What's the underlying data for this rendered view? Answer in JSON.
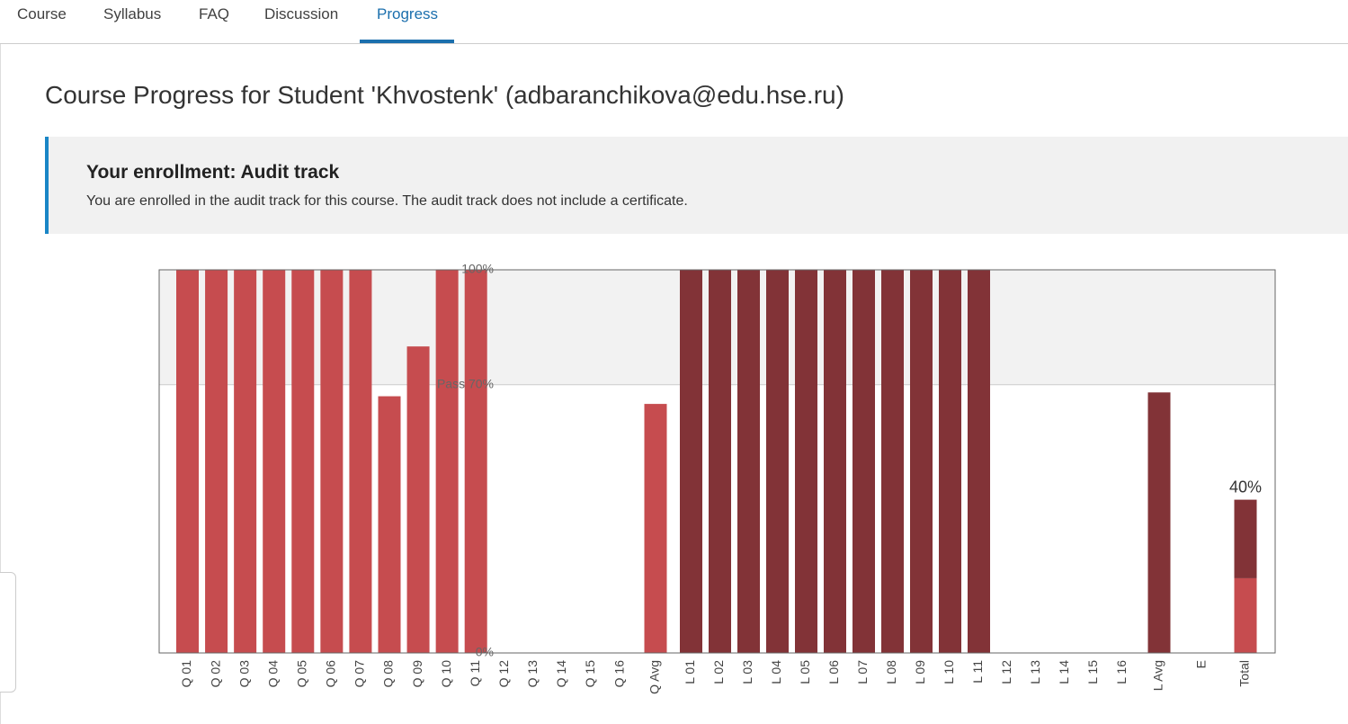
{
  "nav": {
    "tabs": [
      "Course",
      "Syllabus",
      "FAQ",
      "Discussion",
      "Progress"
    ],
    "active": 4
  },
  "header": {
    "title": "Course Progress for Student 'Khvostenk' (adbaranchikova@edu.hse.ru)"
  },
  "enrollment": {
    "title": "Your enrollment: Audit track",
    "text": "You are enrolled in the audit track for this course. The audit track does not include a certificate."
  },
  "chart_data": {
    "type": "bar",
    "categories": [
      "Q 01",
      "Q 02",
      "Q 03",
      "Q 04",
      "Q 05",
      "Q 06",
      "Q 07",
      "Q 08",
      "Q 09",
      "Q 10",
      "Q 11",
      "Q 12",
      "Q 13",
      "Q 14",
      "Q 15",
      "Q 16",
      "Q Avg",
      "L 01",
      "L 02",
      "L 03",
      "L 04",
      "L 05",
      "L 06",
      "L 07",
      "L 08",
      "L 09",
      "L 10",
      "L 11",
      "L 12",
      "L 13",
      "L 14",
      "L 15",
      "L 16",
      "L Avg",
      "E",
      "Total"
    ],
    "series": [
      {
        "color": "#c64c4f",
        "values": [
          100,
          100,
          100,
          100,
          100,
          100,
          100,
          67,
          80,
          100,
          100,
          0,
          0,
          0,
          0,
          0,
          65,
          null,
          null,
          null,
          null,
          null,
          null,
          null,
          null,
          null,
          null,
          null,
          null,
          null,
          null,
          null,
          null,
          null,
          null,
          19.5
        ]
      },
      {
        "color": "#823337",
        "values": [
          null,
          null,
          null,
          null,
          null,
          null,
          null,
          null,
          null,
          null,
          null,
          null,
          null,
          null,
          null,
          null,
          null,
          100,
          100,
          100,
          100,
          100,
          100,
          100,
          100,
          100,
          100,
          100,
          0,
          0,
          0,
          0,
          0,
          68,
          null,
          20.5
        ]
      }
    ],
    "ylim": [
      0,
      100
    ],
    "yticks": [
      {
        "value": 0,
        "label": "0%"
      },
      {
        "value": 70,
        "label": "Pass 70%"
      },
      {
        "value": 100,
        "label": "100%"
      }
    ],
    "annotations": [
      {
        "text": "40%",
        "category": 35
      }
    ]
  }
}
